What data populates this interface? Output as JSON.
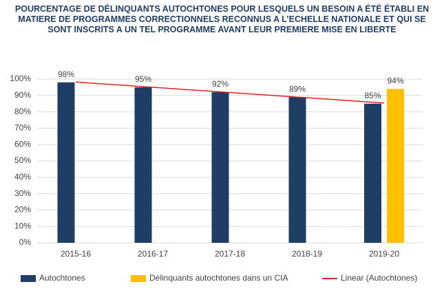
{
  "chart_data": {
    "type": "bar",
    "title": "POURCENTAGE DE DÉLINQUANTS AUTOCHTONES POUR LESQUELS UN BESOIN A ÉTÉ ÉTABLI EN MATIERE DE PROGRAMMES CORRECTIONNELS RECONNUS A L’ECHELLE NATIONALE ET QUI SE SONT INSCRITS A UN TEL PROGRAMME AVANT LEUR PREMIERE MISE EN LIBERTE",
    "categories": [
      "2015-16",
      "2016-17",
      "2017-18",
      "2018-19",
      "2019-20"
    ],
    "series": [
      {
        "name": "Autochtones",
        "color": "#1f3e66",
        "values": [
          98,
          95,
          92,
          89,
          85
        ],
        "value_labels": [
          "98%",
          "95%",
          "92%",
          "89%",
          "85%"
        ]
      },
      {
        "name": "Délinquants autochtones dans un CIA",
        "color": "#ffc000",
        "values": [
          null,
          null,
          null,
          null,
          94
        ],
        "value_labels": [
          null,
          null,
          null,
          null,
          "94%"
        ]
      },
      {
        "name": "Linear (Autochtones)",
        "type": "line",
        "color": "#e0201b",
        "values": [
          98.2,
          95,
          91.8,
          88.6,
          85.4
        ]
      }
    ],
    "ylim": [
      0,
      100
    ],
    "yticks": [
      {
        "value": 0,
        "label": "0%"
      },
      {
        "value": 10,
        "label": "10%"
      },
      {
        "value": 20,
        "label": "20%"
      },
      {
        "value": 30,
        "label": "30%"
      },
      {
        "value": 40,
        "label": "40%"
      },
      {
        "value": 50,
        "label": "50%"
      },
      {
        "value": 60,
        "label": "60%"
      },
      {
        "value": 70,
        "label": "70%"
      },
      {
        "value": 80,
        "label": "80%"
      },
      {
        "value": 90,
        "label": "90%"
      },
      {
        "value": 100,
        "label": "100%"
      }
    ],
    "grid": true,
    "legend": "bottom"
  }
}
